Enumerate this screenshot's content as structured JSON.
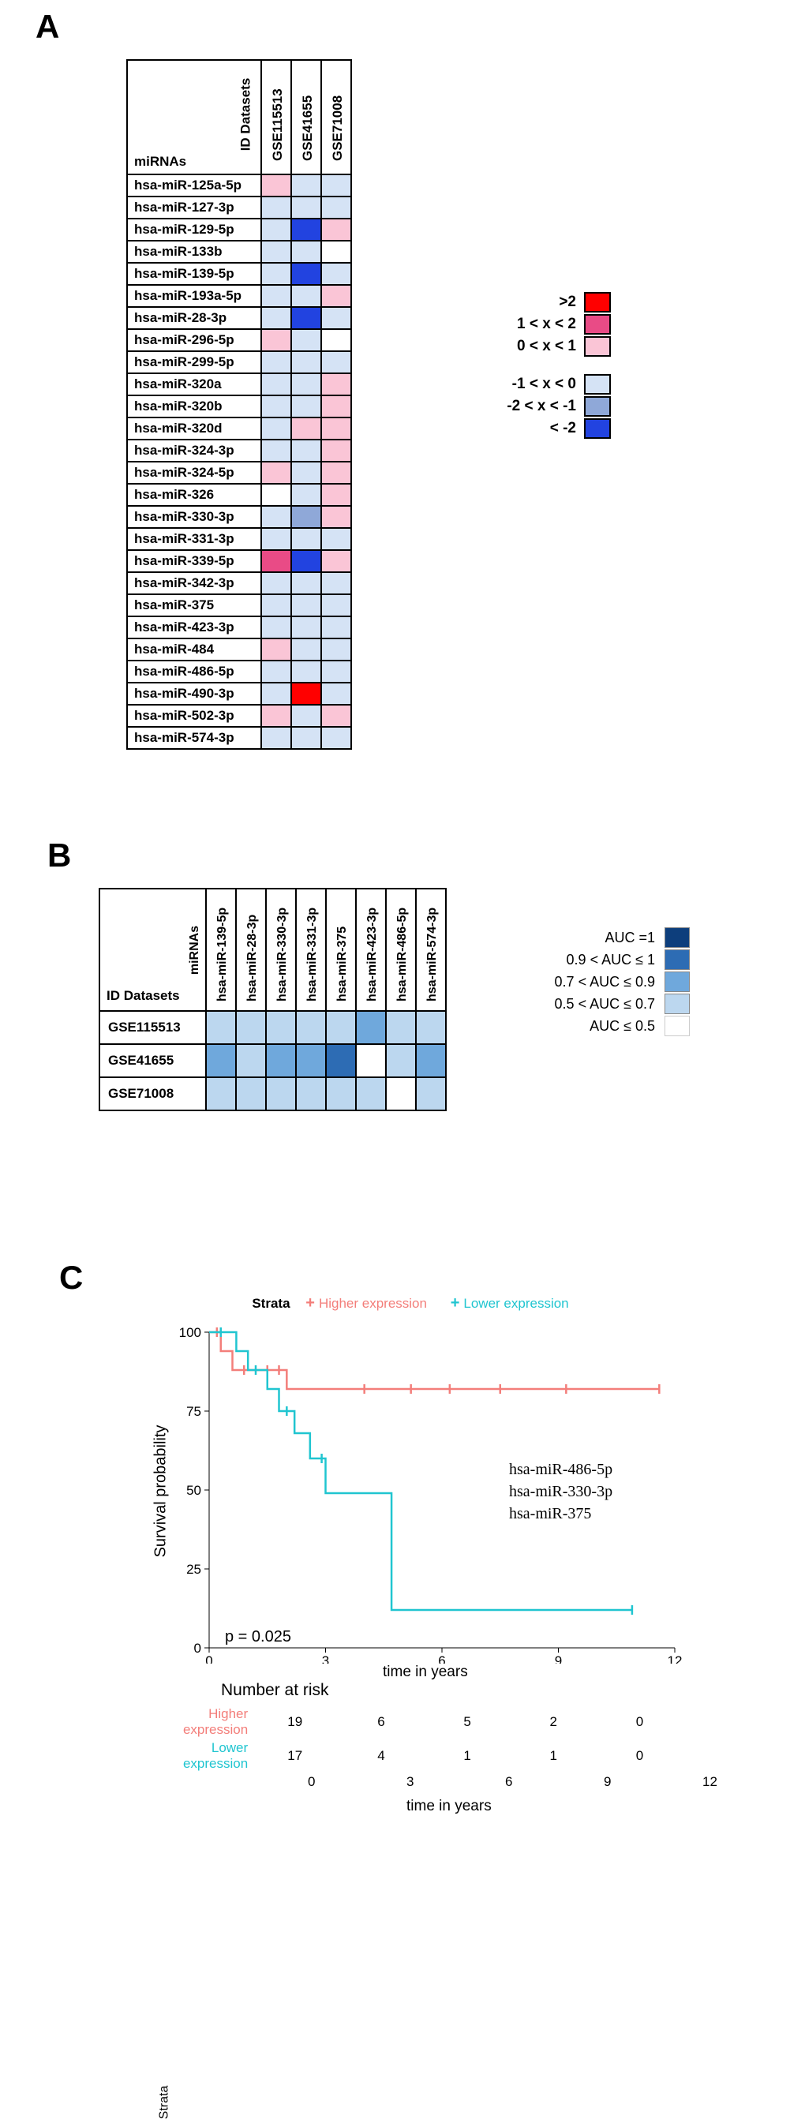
{
  "panelLabels": {
    "A": "A",
    "B": "B",
    "C": "C"
  },
  "colors": {
    "lfc_gt2": "#ff0000",
    "lfc_1_2": "#e94b86",
    "lfc_0_1": "#fac5d6",
    "lfc_n1_0": "#d5e3f5",
    "lfc_n2_n1": "#8fa8d8",
    "lfc_lt_n2": "#2243e0",
    "auc_1": "#0d3e7c",
    "auc_09_1": "#2d6cb4",
    "auc_07_09": "#6fa8dc",
    "auc_05_07": "#bcd7ef",
    "auc_le05": "#ffffff",
    "higher": "#f37e7a",
    "lower": "#20c5d0"
  },
  "panelA": {
    "corner": {
      "mirnas": "miRNAs",
      "iddatasets": "ID Datasets"
    },
    "columns": [
      "GSE115513",
      "GSE41655",
      "GSE71008"
    ],
    "rows": [
      {
        "label": "hsa-miR-125a-5p",
        "cells": [
          "lfc_0_1",
          "lfc_n1_0",
          "lfc_n1_0"
        ]
      },
      {
        "label": "hsa-miR-127-3p",
        "cells": [
          "lfc_n1_0",
          "lfc_n1_0",
          "lfc_n1_0"
        ]
      },
      {
        "label": "hsa-miR-129-5p",
        "cells": [
          "lfc_n1_0",
          "lfc_lt_n2",
          "lfc_0_1"
        ]
      },
      {
        "label": "hsa-miR-133b",
        "cells": [
          "lfc_n1_0",
          "lfc_n1_0",
          "lfc_le05_white"
        ]
      },
      {
        "label": "hsa-miR-139-5p",
        "cells": [
          "lfc_n1_0",
          "lfc_lt_n2",
          "lfc_n1_0"
        ]
      },
      {
        "label": "hsa-miR-193a-5p",
        "cells": [
          "lfc_n1_0",
          "lfc_n1_0",
          "lfc_0_1"
        ]
      },
      {
        "label": "hsa-miR-28-3p",
        "cells": [
          "lfc_n1_0",
          "lfc_lt_n2",
          "lfc_n1_0"
        ]
      },
      {
        "label": "hsa-miR-296-5p",
        "cells": [
          "lfc_0_1",
          "lfc_n1_0",
          "lfc_le05_white"
        ]
      },
      {
        "label": "hsa-miR-299-5p",
        "cells": [
          "lfc_n1_0",
          "lfc_n1_0",
          "lfc_n1_0"
        ]
      },
      {
        "label": "hsa-miR-320a",
        "cells": [
          "lfc_n1_0",
          "lfc_n1_0",
          "lfc_0_1"
        ]
      },
      {
        "label": "hsa-miR-320b",
        "cells": [
          "lfc_n1_0",
          "lfc_n1_0",
          "lfc_0_1"
        ]
      },
      {
        "label": "hsa-miR-320d",
        "cells": [
          "lfc_n1_0",
          "lfc_0_1",
          "lfc_0_1"
        ]
      },
      {
        "label": "hsa-miR-324-3p",
        "cells": [
          "lfc_n1_0",
          "lfc_n1_0",
          "lfc_0_1"
        ]
      },
      {
        "label": "hsa-miR-324-5p",
        "cells": [
          "lfc_0_1",
          "lfc_n1_0",
          "lfc_0_1"
        ]
      },
      {
        "label": "hsa-miR-326",
        "cells": [
          "lfc_le05_white",
          "lfc_n1_0",
          "lfc_0_1"
        ]
      },
      {
        "label": "hsa-miR-330-3p",
        "cells": [
          "lfc_n1_0",
          "lfc_n2_n1",
          "lfc_0_1"
        ]
      },
      {
        "label": "hsa-miR-331-3p",
        "cells": [
          "lfc_n1_0",
          "lfc_n1_0",
          "lfc_n1_0"
        ]
      },
      {
        "label": "hsa-miR-339-5p",
        "cells": [
          "lfc_1_2",
          "lfc_lt_n2",
          "lfc_0_1"
        ]
      },
      {
        "label": "hsa-miR-342-3p",
        "cells": [
          "lfc_n1_0",
          "lfc_n1_0",
          "lfc_n1_0"
        ]
      },
      {
        "label": "hsa-miR-375",
        "cells": [
          "lfc_n1_0",
          "lfc_n1_0",
          "lfc_n1_0"
        ]
      },
      {
        "label": "hsa-miR-423-3p",
        "cells": [
          "lfc_n1_0",
          "lfc_n1_0",
          "lfc_n1_0"
        ]
      },
      {
        "label": "hsa-miR-484",
        "cells": [
          "lfc_0_1",
          "lfc_n1_0",
          "lfc_n1_0"
        ]
      },
      {
        "label": "hsa-miR-486-5p",
        "cells": [
          "lfc_n1_0",
          "lfc_n1_0",
          "lfc_n1_0"
        ]
      },
      {
        "label": "hsa-miR-490-3p",
        "cells": [
          "lfc_n1_0",
          "lfc_gt2",
          "lfc_n1_0"
        ]
      },
      {
        "label": "hsa-miR-502-3p",
        "cells": [
          "lfc_0_1",
          "lfc_n1_0",
          "lfc_0_1"
        ]
      },
      {
        "label": "hsa-miR-574-3p",
        "cells": [
          "lfc_n1_0",
          "lfc_n1_0",
          "lfc_n1_0"
        ]
      }
    ],
    "legend": [
      {
        "label": ">2",
        "color": "lfc_gt2"
      },
      {
        "label": "1 < x < 2",
        "color": "lfc_1_2"
      },
      {
        "label": "0 < x < 1",
        "color": "lfc_0_1"
      },
      {
        "gap": true
      },
      {
        "label": "-1 < x < 0",
        "color": "lfc_n1_0"
      },
      {
        "label": "-2 < x < -1",
        "color": "lfc_n2_n1"
      },
      {
        "label": "< -2",
        "color": "lfc_lt_n2"
      }
    ]
  },
  "panelB": {
    "corner": {
      "iddatasets": "ID Datasets",
      "mirnas": "miRNAs"
    },
    "columns": [
      "hsa-miR-139-5p",
      "hsa-miR-28-3p",
      "hsa-miR-330-3p",
      "hsa-miR-331-3p",
      "hsa-miR-375",
      "hsa-miR-423-3p",
      "hsa-miR-486-5p",
      "hsa-miR-574-3p"
    ],
    "rows": [
      {
        "label": "GSE115513",
        "cells": [
          "auc_05_07",
          "auc_05_07",
          "auc_05_07",
          "auc_05_07",
          "auc_05_07",
          "auc_07_09",
          "auc_05_07",
          "auc_05_07"
        ]
      },
      {
        "label": "GSE41655",
        "cells": [
          "auc_07_09",
          "auc_05_07",
          "auc_07_09",
          "auc_07_09",
          "auc_09_1",
          "auc_le05",
          "auc_05_07",
          "auc_07_09"
        ]
      },
      {
        "label": "GSE71008",
        "cells": [
          "auc_05_07",
          "auc_05_07",
          "auc_05_07",
          "auc_05_07",
          "auc_05_07",
          "auc_05_07",
          "auc_le05",
          "auc_05_07"
        ]
      }
    ],
    "legend": [
      {
        "label": "AUC =1",
        "color": "auc_1"
      },
      {
        "label": "0.9 < AUC ≤ 1",
        "color": "auc_09_1"
      },
      {
        "label": "0.7 < AUC ≤ 0.9",
        "color": "auc_07_09"
      },
      {
        "label": "0.5 < AUC ≤ 0.7",
        "color": "auc_05_07"
      },
      {
        "label": "AUC ≤ 0.5",
        "color": "auc_le05"
      }
    ]
  },
  "panelC": {
    "legend": {
      "strata": "Strata",
      "higher": "Higher expression",
      "lower": "Lower expression",
      "plus": "+"
    },
    "chart": {
      "xlim": [
        0,
        12
      ],
      "ylim": [
        0,
        100
      ],
      "xticks": [
        0,
        3,
        6,
        9,
        12
      ],
      "yticks": [
        0,
        25,
        50,
        75,
        100
      ],
      "xlabel": "time in years",
      "ylabel": "Survival probability",
      "pvalue": "p = 0.025",
      "mirnas": [
        "hsa-miR-486-5p",
        "hsa-miR-330-3p",
        "hsa-miR-375"
      ],
      "series": {
        "higher": {
          "color": "higher",
          "steps": [
            [
              0,
              100
            ],
            [
              0.3,
              100
            ],
            [
              0.3,
              94
            ],
            [
              0.6,
              94
            ],
            [
              0.6,
              88
            ],
            [
              2.0,
              88
            ],
            [
              2.0,
              82
            ],
            [
              11.6,
              82
            ]
          ],
          "censor": [
            [
              0.2,
              100
            ],
            [
              0.9,
              88
            ],
            [
              1.5,
              88
            ],
            [
              1.8,
              88
            ],
            [
              4.0,
              82
            ],
            [
              5.2,
              82
            ],
            [
              6.2,
              82
            ],
            [
              7.5,
              82
            ],
            [
              9.2,
              82
            ],
            [
              11.6,
              82
            ]
          ]
        },
        "lower": {
          "color": "lower",
          "steps": [
            [
              0,
              100
            ],
            [
              0.7,
              100
            ],
            [
              0.7,
              94
            ],
            [
              1.0,
              94
            ],
            [
              1.0,
              88
            ],
            [
              1.5,
              88
            ],
            [
              1.5,
              82
            ],
            [
              1.8,
              82
            ],
            [
              1.8,
              75
            ],
            [
              2.2,
              75
            ],
            [
              2.2,
              68
            ],
            [
              2.6,
              68
            ],
            [
              2.6,
              60
            ],
            [
              3.0,
              60
            ],
            [
              3.0,
              49
            ],
            [
              4.7,
              49
            ],
            [
              4.7,
              12
            ],
            [
              10.9,
              12
            ]
          ],
          "censor": [
            [
              0.3,
              100
            ],
            [
              1.2,
              88
            ],
            [
              2.0,
              75
            ],
            [
              2.9,
              60
            ],
            [
              10.9,
              12
            ]
          ]
        }
      }
    },
    "riskTable": {
      "title": "Number at risk",
      "strata": "Strata",
      "xticks": [
        0,
        3,
        6,
        9,
        12
      ],
      "xlabel": "time in years",
      "rows": [
        {
          "label": "Higher expression",
          "class": "higher",
          "values": [
            19,
            6,
            5,
            2,
            0
          ]
        },
        {
          "label": "Lower expression",
          "class": "lower",
          "values": [
            17,
            4,
            1,
            1,
            0
          ]
        }
      ]
    }
  }
}
